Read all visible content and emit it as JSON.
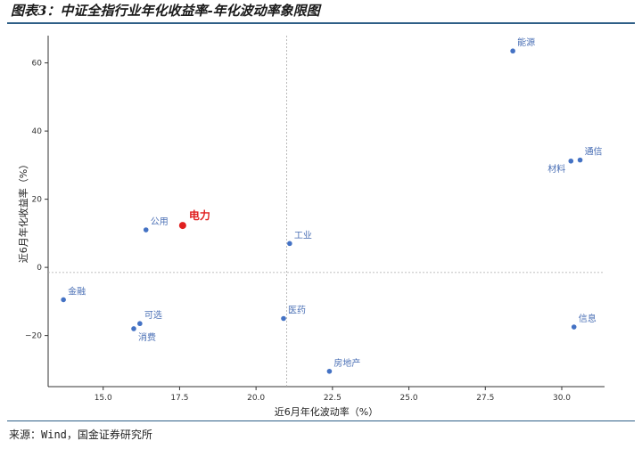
{
  "title": "图表3：中证全指行业年化收益率-年化波动率象限图",
  "source": "来源：Wind，国金证券研究所",
  "colors": {
    "point": "#4472c4",
    "highlight": "#e02020",
    "label": "#4a6fb5",
    "rule": "#2f5f87"
  },
  "chart_data": {
    "type": "scatter",
    "title": "",
    "xlabel": "近6月年化波动率（%）",
    "ylabel": "近6月年化收益率（%）",
    "xlim": [
      13.2,
      31.4
    ],
    "ylim": [
      -35,
      68
    ],
    "xticks": [
      15.0,
      17.5,
      20.0,
      22.5,
      25.0,
      27.5,
      30.0
    ],
    "xtick_labels": [
      "15.0",
      "17.5",
      "20.0",
      "22.5",
      "25.0",
      "27.5",
      "30.0"
    ],
    "yticks": [
      -20,
      0,
      20,
      40,
      60
    ],
    "ytick_labels": [
      "−20",
      "0",
      "20",
      "40",
      "60"
    ],
    "quadrant_lines": {
      "x": 21.0,
      "y": -1.5
    },
    "grid": false,
    "points": [
      {
        "name": "能源",
        "x": 28.4,
        "y": 63.5,
        "label_pos": "upper-right"
      },
      {
        "name": "通信",
        "x": 30.6,
        "y": 31.5,
        "label_pos": "upper-right"
      },
      {
        "name": "材料",
        "x": 30.3,
        "y": 31.2,
        "label_pos": "lower-left"
      },
      {
        "name": "公用",
        "x": 16.4,
        "y": 11.0,
        "label_pos": "upper-right"
      },
      {
        "name": "电力",
        "x": 17.6,
        "y": 12.3,
        "label_pos": "upper-right",
        "highlight": true
      },
      {
        "name": "工业",
        "x": 21.1,
        "y": 7.0,
        "label_pos": "upper-right"
      },
      {
        "name": "金融",
        "x": 13.7,
        "y": -9.5,
        "label_pos": "upper-right"
      },
      {
        "name": "可选",
        "x": 16.2,
        "y": -16.5,
        "label_pos": "upper-right"
      },
      {
        "name": "消费",
        "x": 16.0,
        "y": -18.0,
        "label_pos": "lower-right"
      },
      {
        "name": "医药",
        "x": 20.9,
        "y": -15.0,
        "label_pos": "upper-right"
      },
      {
        "name": "信息",
        "x": 30.4,
        "y": -17.5,
        "label_pos": "upper-right"
      },
      {
        "name": "房地产",
        "x": 22.4,
        "y": -30.5,
        "label_pos": "upper-right"
      }
    ]
  }
}
